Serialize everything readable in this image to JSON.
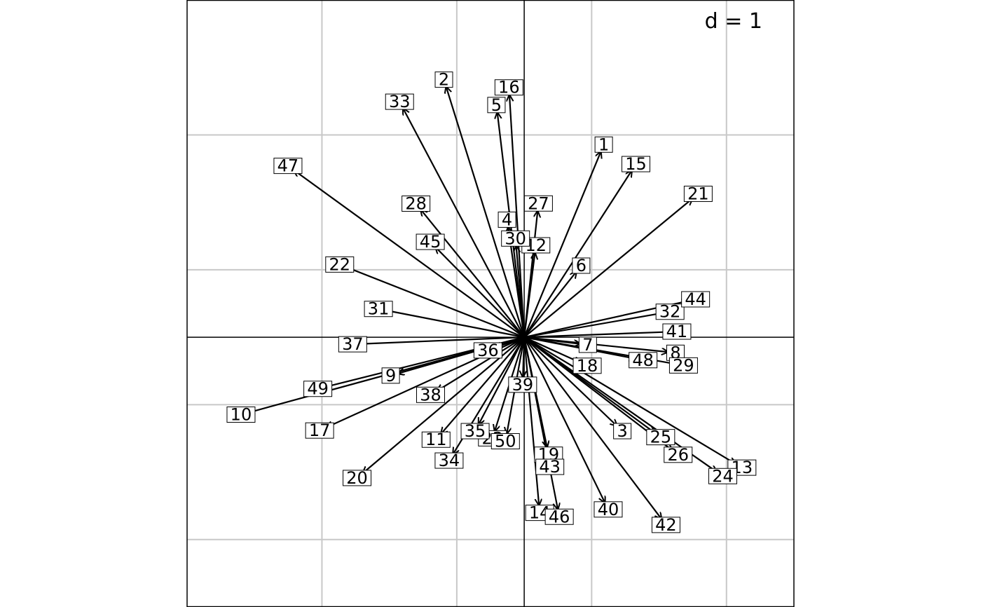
{
  "chart_data": {
    "type": "arrow-biplot",
    "scale_label": "d = 1",
    "grid_step": 1,
    "xlim": [
      -2.5,
      2.0
    ],
    "ylim": [
      -2.0,
      2.5
    ],
    "origin": [
      0,
      0
    ],
    "arrows": [
      {
        "label": "1",
        "x": 0.57,
        "y": 1.38
      },
      {
        "label": "2",
        "x": -0.58,
        "y": 1.86
      },
      {
        "label": "3",
        "x": 0.69,
        "y": -0.66
      },
      {
        "label": "4",
        "x": -0.12,
        "y": 0.82
      },
      {
        "label": "5",
        "x": -0.2,
        "y": 1.67
      },
      {
        "label": "6",
        "x": 0.39,
        "y": 0.49
      },
      {
        "label": "7",
        "x": 0.42,
        "y": -0.05
      },
      {
        "label": "8",
        "x": 1.07,
        "y": -0.11
      },
      {
        "label": "9",
        "x": -0.94,
        "y": -0.27
      },
      {
        "label": "10",
        "x": -2.05,
        "y": -0.56
      },
      {
        "label": "11",
        "x": -0.62,
        "y": -0.72
      },
      {
        "label": "12",
        "x": 0.08,
        "y": 0.63
      },
      {
        "label": "13",
        "x": 1.57,
        "y": -0.94
      },
      {
        "label": "14",
        "x": 0.11,
        "y": -1.25
      },
      {
        "label": "15",
        "x": 0.8,
        "y": 1.24
      },
      {
        "label": "16",
        "x": -0.11,
        "y": 1.8
      },
      {
        "label": "17",
        "x": -1.47,
        "y": -0.67
      },
      {
        "label": "18",
        "x": 0.42,
        "y": -0.19
      },
      {
        "label": "19",
        "x": 0.17,
        "y": -0.82
      },
      {
        "label": "20",
        "x": -1.2,
        "y": -1.01
      },
      {
        "label": "21",
        "x": 1.25,
        "y": 1.03
      },
      {
        "label": "22",
        "x": -1.32,
        "y": 0.52
      },
      {
        "label": "23",
        "x": -0.22,
        "y": -0.7
      },
      {
        "label": "24",
        "x": 1.43,
        "y": -1.0
      },
      {
        "label": "25",
        "x": 0.97,
        "y": -0.71
      },
      {
        "label": "26",
        "x": 1.1,
        "y": -0.84
      },
      {
        "label": "27",
        "x": 0.1,
        "y": 0.94
      },
      {
        "label": "28",
        "x": -0.77,
        "y": 0.95
      },
      {
        "label": "29",
        "x": 1.13,
        "y": -0.2
      },
      {
        "label": "30",
        "x": -0.06,
        "y": 0.68
      },
      {
        "label": "31",
        "x": -1.03,
        "y": 0.2
      },
      {
        "label": "32",
        "x": 1.03,
        "y": 0.18
      },
      {
        "label": "33",
        "x": -0.9,
        "y": 1.7
      },
      {
        "label": "34",
        "x": -0.53,
        "y": -0.87
      },
      {
        "label": "35",
        "x": -0.34,
        "y": -0.65
      },
      {
        "label": "36",
        "x": -0.22,
        "y": -0.08
      },
      {
        "label": "37",
        "x": -1.22,
        "y": -0.05
      },
      {
        "label": "38",
        "x": -0.65,
        "y": -0.4
      },
      {
        "label": "39",
        "x": -0.01,
        "y": -0.3
      },
      {
        "label": "40",
        "x": 0.6,
        "y": -1.23
      },
      {
        "label": "41",
        "x": 1.08,
        "y": 0.04
      },
      {
        "label": "42",
        "x": 1.02,
        "y": -1.35
      },
      {
        "label": "43",
        "x": 0.18,
        "y": -0.91
      },
      {
        "label": "44",
        "x": 1.22,
        "y": 0.27
      },
      {
        "label": "45",
        "x": -0.66,
        "y": 0.67
      },
      {
        "label": "46",
        "x": 0.25,
        "y": -1.28
      },
      {
        "label": "47",
        "x": -1.71,
        "y": 1.24
      },
      {
        "label": "48",
        "x": 0.83,
        "y": -0.16
      },
      {
        "label": "49",
        "x": -1.48,
        "y": -0.37
      },
      {
        "label": "50",
        "x": -0.13,
        "y": -0.72
      }
    ]
  }
}
